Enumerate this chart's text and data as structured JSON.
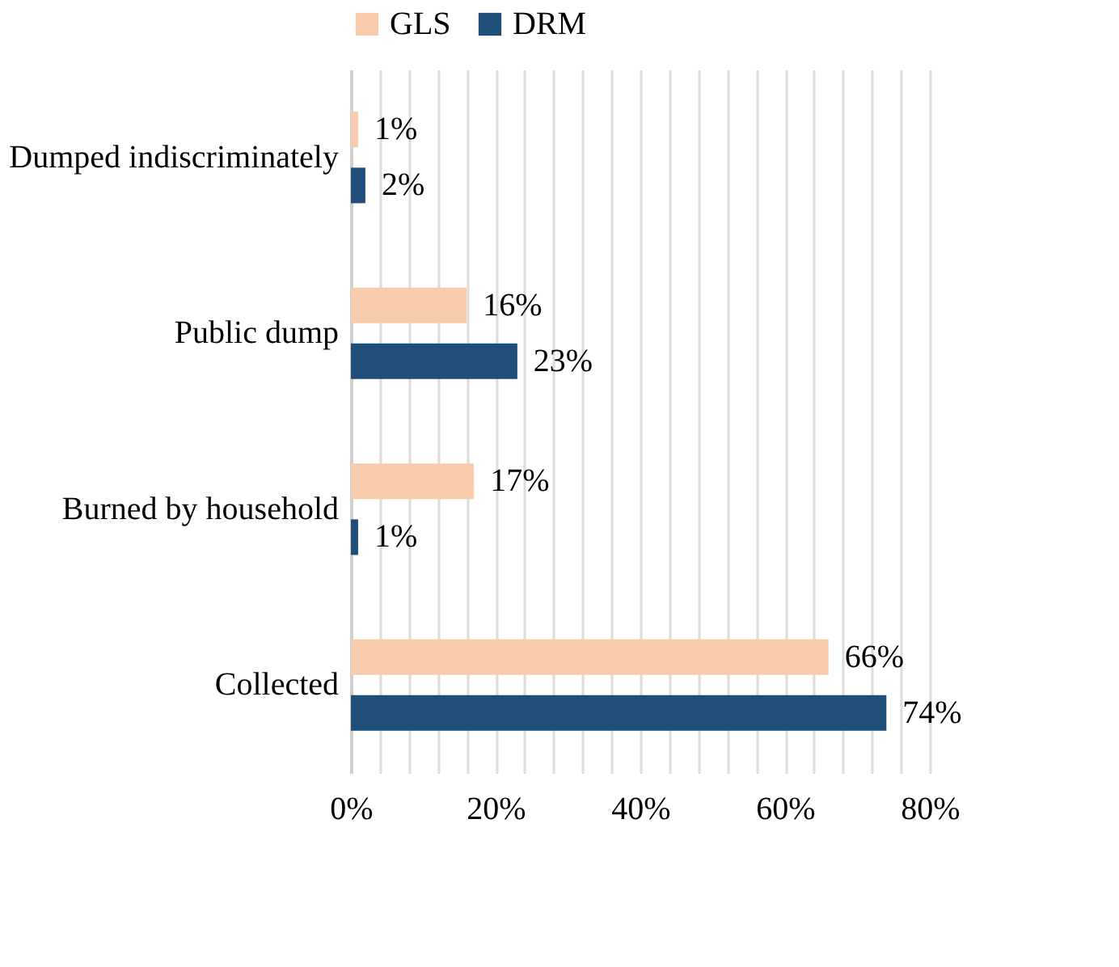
{
  "chart_data": {
    "type": "bar",
    "orientation": "horizontal",
    "categories": [
      "Dumped indiscriminately",
      "Public dump",
      "Burned by household",
      "Collected"
    ],
    "series": [
      {
        "name": "GLS",
        "color": "#f8cbad",
        "values": [
          1,
          16,
          17,
          66
        ],
        "value_labels": [
          "1%",
          "16%",
          "17%",
          "66%"
        ]
      },
      {
        "name": "DRM",
        "color": "#1f4e79",
        "values": [
          2,
          23,
          1,
          74
        ],
        "value_labels": [
          "2%",
          "23%",
          "1%",
          "74%"
        ]
      }
    ],
    "xlim": [
      0,
      80
    ],
    "xticks": [
      {
        "value": 0,
        "label": "0%"
      },
      {
        "value": 4,
        "label": null
      },
      {
        "value": 8,
        "label": null
      },
      {
        "value": 12,
        "label": null
      },
      {
        "value": 16,
        "label": null
      },
      {
        "value": 20,
        "label": "20%"
      },
      {
        "value": 24,
        "label": null
      },
      {
        "value": 28,
        "label": null
      },
      {
        "value": 32,
        "label": null
      },
      {
        "value": 36,
        "label": null
      },
      {
        "value": 40,
        "label": "40%"
      },
      {
        "value": 44,
        "label": null
      },
      {
        "value": 48,
        "label": null
      },
      {
        "value": 52,
        "label": null
      },
      {
        "value": 56,
        "label": null
      },
      {
        "value": 60,
        "label": "60%"
      },
      {
        "value": 64,
        "label": null
      },
      {
        "value": 68,
        "label": null
      },
      {
        "value": 72,
        "label": null
      },
      {
        "value": 76,
        "label": null
      },
      {
        "value": 80,
        "label": "80%"
      }
    ],
    "grid": "x",
    "legend": "top"
  }
}
